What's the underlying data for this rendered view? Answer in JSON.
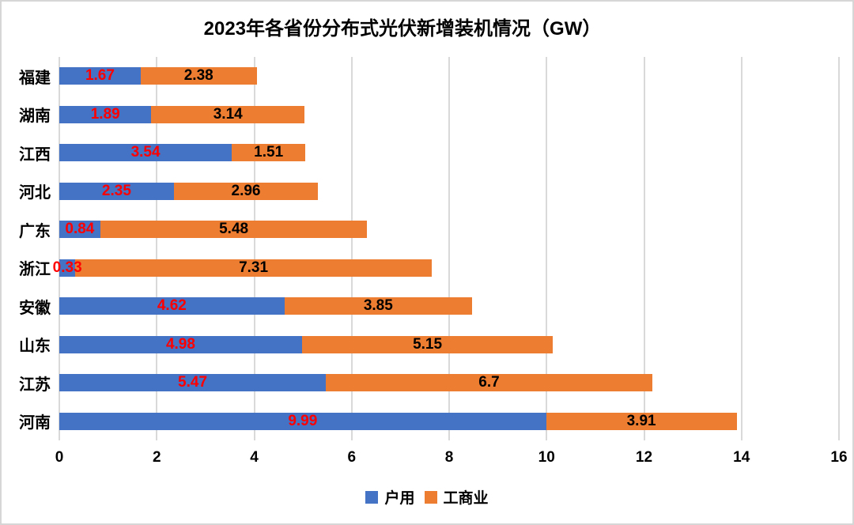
{
  "chart_data": {
    "type": "bar",
    "orientation": "horizontal",
    "stacked": true,
    "title": "2023年各省份分布式光伏新增装机情况（GW）",
    "xlabel": "",
    "ylabel": "",
    "categories": [
      "福建",
      "湖南",
      "江西",
      "河北",
      "广东",
      "浙江",
      "安徽",
      "山东",
      "江苏",
      "河南"
    ],
    "series": [
      {
        "name": "户用",
        "color": "#4472C4",
        "label_color": "#FF0000",
        "values": [
          1.67,
          1.89,
          3.54,
          2.35,
          0.84,
          0.33,
          4.62,
          4.98,
          5.47,
          9.99
        ]
      },
      {
        "name": "工商业",
        "color": "#ED7D31",
        "label_color": "#000000",
        "values": [
          2.38,
          3.14,
          1.51,
          2.96,
          5.48,
          7.31,
          3.85,
          5.15,
          6.7,
          3.91
        ]
      }
    ],
    "xlim": [
      0,
      16
    ],
    "xticks": [
      0,
      2,
      4,
      6,
      8,
      10,
      12,
      14,
      16
    ],
    "grid": true,
    "gridline_color": "#d9d9d9",
    "legend_position": "bottom"
  }
}
